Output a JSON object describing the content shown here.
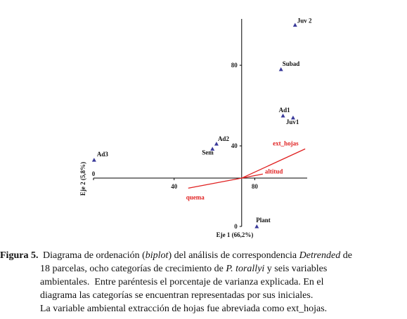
{
  "chart_data": {
    "type": "scatter",
    "xlabel": "Eje 1 (66,2%)",
    "ylabel": "Eje 2 (5,8%)",
    "xlim": [
      0,
      106
    ],
    "ylim": [
      0,
      103
    ],
    "xticks": [
      0,
      40,
      80
    ],
    "yticks": [
      0,
      40,
      80
    ],
    "axis_origin": {
      "x": 73.5,
      "y": 24
    },
    "series": [
      {
        "name": "categorías",
        "color": "#3a3a9a",
        "labels": [
          "Juv 2",
          "Subad",
          "Ad1",
          "Juv1",
          "Ad2",
          "Sem",
          "Ad3",
          "Plant"
        ],
        "x": [
          100,
          93,
          94,
          99,
          61,
          59,
          0.3,
          81
        ],
        "values": [
          100,
          78,
          55,
          54,
          41,
          38.5,
          33,
          0
        ]
      }
    ],
    "vectors": {
      "color": "#e02020",
      "labels": [
        "ext_hojas",
        "altitud",
        "quema"
      ],
      "x": [
        105,
        84,
        47
      ],
      "values": [
        38.5,
        26,
        19
      ]
    }
  },
  "caption": {
    "label": "Figura 5.",
    "lines": [
      [
        {
          "text": "Diagrama de ordenación ("
        },
        {
          "text": "biplot",
          "italic": true
        },
        {
          "text": ") del análisis de correspondencia "
        },
        {
          "text": "Detrended",
          "italic": true
        },
        {
          "text": " de"
        }
      ],
      [
        {
          "text": "18 parcelas, ocho categorías de crecimiento de "
        },
        {
          "text": "P. torallyi",
          "italic": true
        },
        {
          "text": " y seis variables"
        }
      ],
      [
        {
          "text": "ambientales.  Entre paréntesis el porcentaje de varianza explicada. En el"
        }
      ],
      [
        {
          "text": "diagrama las categorías se encuentran representadas por sus iniciales."
        }
      ],
      [
        {
          "text": "La variable ambiental extracción de hojas fue abreviada como ext_hojas."
        }
      ]
    ]
  }
}
